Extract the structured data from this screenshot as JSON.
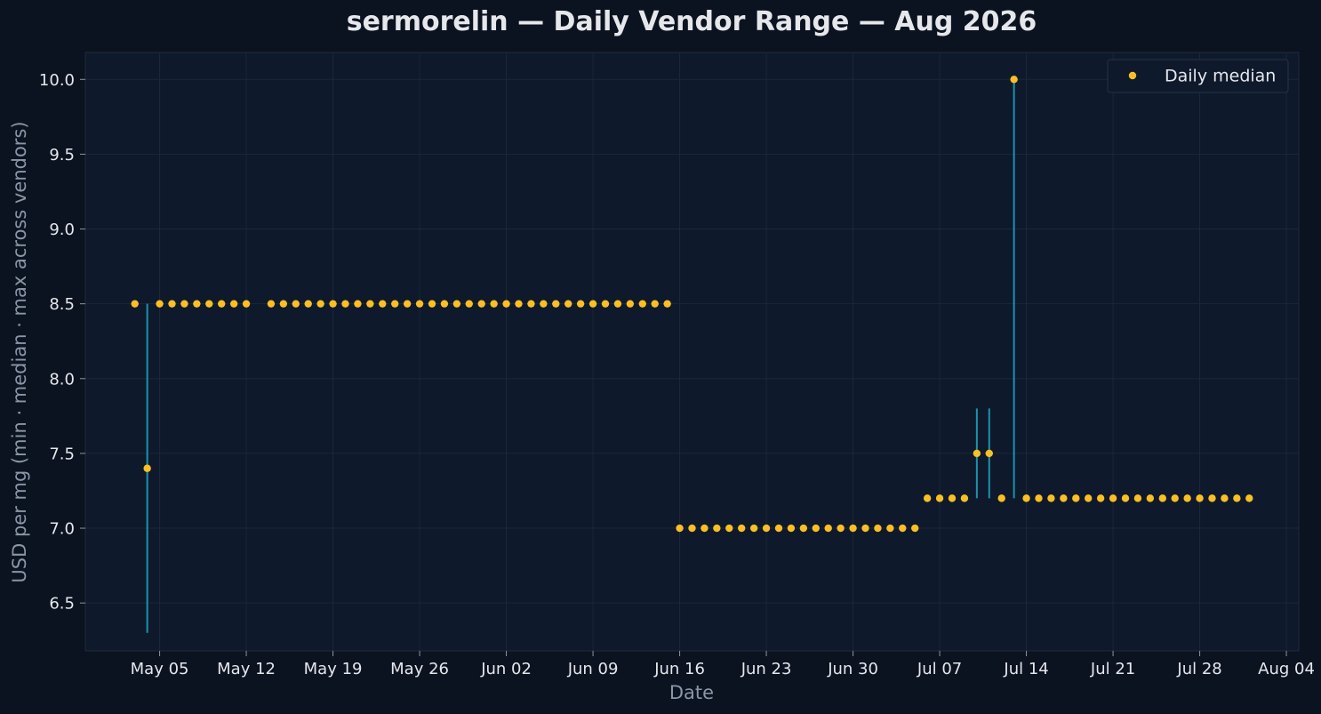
{
  "chart_data": {
    "type": "scatter",
    "title": "sermorelin — Daily Vendor Range — Aug 2026",
    "xlabel": "Date",
    "ylabel": "USD per mg (min · median · max across vendors)",
    "x_tick_labels": [
      "May 05",
      "May 12",
      "May 19",
      "May 26",
      "Jun 02",
      "Jun 09",
      "Jun 16",
      "Jun 23",
      "Jun 30",
      "Jul 07",
      "Jul 14",
      "Jul 21",
      "Jul 28",
      "Aug 04"
    ],
    "x_ticks": [
      "2026-05-05",
      "2026-05-12",
      "2026-05-19",
      "2026-05-26",
      "2026-06-02",
      "2026-06-09",
      "2026-06-16",
      "2026-06-23",
      "2026-06-30",
      "2026-07-07",
      "2026-07-14",
      "2026-07-21",
      "2026-07-28",
      "2026-08-04"
    ],
    "y_ticks": [
      "6.5",
      "7.0",
      "7.5",
      "8.0",
      "8.5",
      "9.0",
      "9.5",
      "10.0"
    ],
    "xlim": [
      "2026-04-29",
      "2026-08-05"
    ],
    "ylim": [
      6.18,
      10.18
    ],
    "grid": true,
    "legend_position": "top-right",
    "series": [
      {
        "name": "Daily median",
        "x": [
          "2026-05-03",
          "2026-05-04",
          "2026-05-05",
          "2026-05-06",
          "2026-05-07",
          "2026-05-08",
          "2026-05-09",
          "2026-05-10",
          "2026-05-11",
          "2026-05-12",
          "2026-05-14",
          "2026-05-15",
          "2026-05-16",
          "2026-05-17",
          "2026-05-18",
          "2026-05-19",
          "2026-05-20",
          "2026-05-21",
          "2026-05-22",
          "2026-05-23",
          "2026-05-24",
          "2026-05-25",
          "2026-05-26",
          "2026-05-27",
          "2026-05-28",
          "2026-05-29",
          "2026-05-30",
          "2026-05-31",
          "2026-06-01",
          "2026-06-02",
          "2026-06-03",
          "2026-06-04",
          "2026-06-05",
          "2026-06-06",
          "2026-06-07",
          "2026-06-08",
          "2026-06-09",
          "2026-06-10",
          "2026-06-11",
          "2026-06-12",
          "2026-06-13",
          "2026-06-14",
          "2026-06-15",
          "2026-06-16",
          "2026-06-17",
          "2026-06-18",
          "2026-06-19",
          "2026-06-20",
          "2026-06-21",
          "2026-06-22",
          "2026-06-23",
          "2026-06-24",
          "2026-06-25",
          "2026-06-26",
          "2026-06-27",
          "2026-06-28",
          "2026-06-29",
          "2026-06-30",
          "2026-07-01",
          "2026-07-02",
          "2026-07-03",
          "2026-07-04",
          "2026-07-05",
          "2026-07-06",
          "2026-07-07",
          "2026-07-08",
          "2026-07-09",
          "2026-07-10",
          "2026-07-11",
          "2026-07-12",
          "2026-07-13",
          "2026-07-14",
          "2026-07-15",
          "2026-07-16",
          "2026-07-17",
          "2026-07-18",
          "2026-07-19",
          "2026-07-20",
          "2026-07-21",
          "2026-07-22",
          "2026-07-23",
          "2026-07-24",
          "2026-07-25",
          "2026-07-26",
          "2026-07-27",
          "2026-07-28",
          "2026-07-29",
          "2026-07-30",
          "2026-07-31",
          "2026-08-01"
        ],
        "median": [
          8.5,
          7.4,
          8.5,
          8.5,
          8.5,
          8.5,
          8.5,
          8.5,
          8.5,
          8.5,
          8.5,
          8.5,
          8.5,
          8.5,
          8.5,
          8.5,
          8.5,
          8.5,
          8.5,
          8.5,
          8.5,
          8.5,
          8.5,
          8.5,
          8.5,
          8.5,
          8.5,
          8.5,
          8.5,
          8.5,
          8.5,
          8.5,
          8.5,
          8.5,
          8.5,
          8.5,
          8.5,
          8.5,
          8.5,
          8.5,
          8.5,
          8.5,
          8.5,
          7.0,
          7.0,
          7.0,
          7.0,
          7.0,
          7.0,
          7.0,
          7.0,
          7.0,
          7.0,
          7.0,
          7.0,
          7.0,
          7.0,
          7.0,
          7.0,
          7.0,
          7.0,
          7.0,
          7.0,
          7.2,
          7.2,
          7.2,
          7.2,
          7.5,
          7.5,
          7.2,
          10.0,
          7.2,
          7.2,
          7.2,
          7.2,
          7.2,
          7.2,
          7.2,
          7.2,
          7.2,
          7.2,
          7.2,
          7.2,
          7.2,
          7.2,
          7.2,
          7.2,
          7.2,
          7.2,
          7.2
        ],
        "min": [
          8.5,
          6.3,
          8.5,
          8.5,
          8.5,
          8.5,
          8.5,
          8.5,
          8.5,
          8.5,
          8.5,
          8.5,
          8.5,
          8.5,
          8.5,
          8.5,
          8.5,
          8.5,
          8.5,
          8.5,
          8.5,
          8.5,
          8.5,
          8.5,
          8.5,
          8.5,
          8.5,
          8.5,
          8.5,
          8.5,
          8.5,
          8.5,
          8.5,
          8.5,
          8.5,
          8.5,
          8.5,
          8.5,
          8.5,
          8.5,
          8.5,
          8.5,
          8.5,
          7.0,
          7.0,
          7.0,
          7.0,
          7.0,
          7.0,
          7.0,
          7.0,
          7.0,
          7.0,
          7.0,
          7.0,
          7.0,
          7.0,
          7.0,
          7.0,
          7.0,
          7.0,
          7.0,
          7.0,
          7.2,
          7.2,
          7.2,
          7.2,
          7.2,
          7.2,
          7.2,
          7.2,
          7.2,
          7.2,
          7.2,
          7.2,
          7.2,
          7.2,
          7.2,
          7.2,
          7.2,
          7.2,
          7.2,
          7.2,
          7.2,
          7.2,
          7.2,
          7.2,
          7.2,
          7.2,
          7.2
        ],
        "max": [
          8.5,
          8.5,
          8.5,
          8.5,
          8.5,
          8.5,
          8.5,
          8.5,
          8.5,
          8.5,
          8.5,
          8.5,
          8.5,
          8.5,
          8.5,
          8.5,
          8.5,
          8.5,
          8.5,
          8.5,
          8.5,
          8.5,
          8.5,
          8.5,
          8.5,
          8.5,
          8.5,
          8.5,
          8.5,
          8.5,
          8.5,
          8.5,
          8.5,
          8.5,
          8.5,
          8.5,
          8.5,
          8.5,
          8.5,
          8.5,
          8.5,
          8.5,
          8.5,
          7.0,
          7.0,
          7.0,
          7.0,
          7.0,
          7.0,
          7.0,
          7.0,
          7.0,
          7.0,
          7.0,
          7.0,
          7.0,
          7.0,
          7.0,
          7.0,
          7.0,
          7.0,
          7.0,
          7.0,
          7.2,
          7.2,
          7.2,
          7.2,
          7.8,
          7.8,
          7.2,
          10.0,
          7.2,
          7.2,
          7.2,
          7.2,
          7.2,
          7.2,
          7.2,
          7.2,
          7.2,
          7.2,
          7.2,
          7.2,
          7.2,
          7.2,
          7.2,
          7.2,
          7.2,
          7.2,
          7.2
        ]
      }
    ],
    "colors": {
      "page_background": "#0b1220",
      "plot_background": "#0f192c",
      "median_marker": "#fbbf24",
      "range_line": "#1b93ad",
      "text": "#e5e7eb",
      "axis_label": "#8a96a6"
    }
  }
}
